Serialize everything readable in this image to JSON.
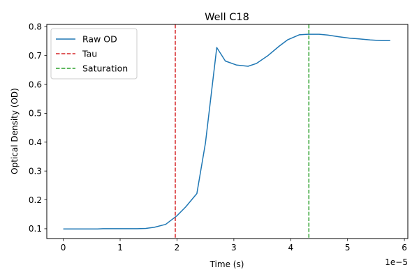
{
  "chart_data": {
    "type": "line",
    "title": "Well C18",
    "xlabel": "Time (s)",
    "ylabel": "Optical Density (OD)",
    "x_scale_label": "1e−5",
    "xlim": [
      -0.29,
      6.06
    ],
    "ylim": [
      0.066,
      0.808
    ],
    "x_ticks": [
      0,
      1,
      2,
      3,
      4,
      5,
      6
    ],
    "y_ticks": [
      0.1,
      0.2,
      0.3,
      0.4,
      0.5,
      0.6,
      0.7,
      0.8
    ],
    "x_tick_labels": [
      "0",
      "1",
      "2",
      "3",
      "4",
      "5",
      "6"
    ],
    "y_tick_labels": [
      "0.1",
      "0.2",
      "0.3",
      "0.4",
      "0.5",
      "0.6",
      "0.7",
      "0.8"
    ],
    "grid": false,
    "legend_position": "top-left",
    "series": [
      {
        "name": "Raw OD",
        "color": "#1f77b4",
        "style": "solid",
        "x": [
          0,
          0.2,
          0.4,
          0.6,
          0.7,
          0.9,
          1.1,
          1.3,
          1.45,
          1.6,
          1.8,
          2.0,
          2.15,
          2.35,
          2.5,
          2.7,
          2.85,
          3.05,
          3.25,
          3.4,
          3.6,
          3.8,
          3.95,
          4.15,
          4.3,
          4.5,
          4.65,
          4.85,
          5.05,
          5.2,
          5.4,
          5.6,
          5.75
        ],
        "y": [
          0.099,
          0.099,
          0.099,
          0.099,
          0.1,
          0.1,
          0.1,
          0.1,
          0.101,
          0.105,
          0.115,
          0.145,
          0.175,
          0.222,
          0.397,
          0.728,
          0.681,
          0.667,
          0.663,
          0.673,
          0.7,
          0.733,
          0.755,
          0.772,
          0.774,
          0.774,
          0.771,
          0.765,
          0.76,
          0.758,
          0.754,
          0.752,
          0.752
        ]
      }
    ],
    "vlines": [
      {
        "name": "Tau",
        "x": 1.97,
        "color": "#d62728",
        "style": "dashed"
      },
      {
        "name": "Saturation",
        "x": 4.32,
        "color": "#2ca02c",
        "style": "dashed"
      }
    ]
  }
}
